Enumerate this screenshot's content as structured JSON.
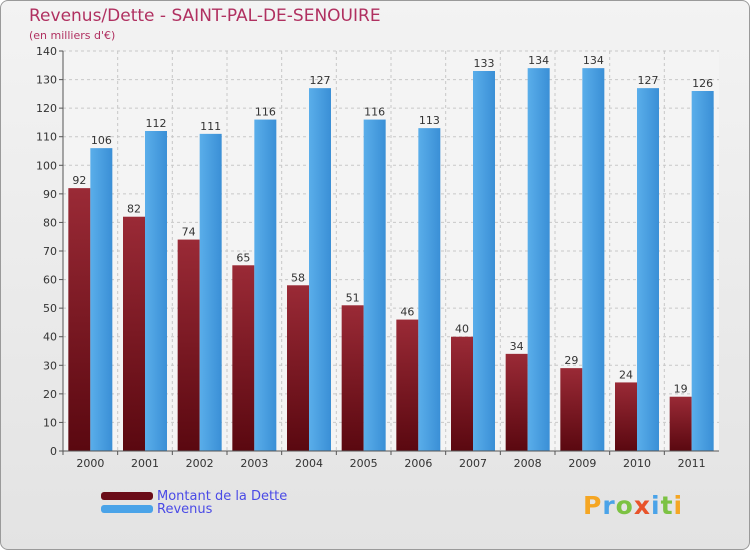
{
  "chart_data": {
    "type": "bar",
    "title": "Revenus/Dette - SAINT-PAL-DE-SENOUIRE",
    "subtitle": "(en milliers d'€)",
    "categories": [
      "2000",
      "2001",
      "2002",
      "2003",
      "2004",
      "2005",
      "2006",
      "2007",
      "2008",
      "2009",
      "2010",
      "2011"
    ],
    "series": [
      {
        "name": "Montant de la Dette",
        "values": [
          92,
          82,
          74,
          65,
          58,
          51,
          46,
          40,
          34,
          29,
          24,
          19
        ],
        "color": "#8c1c2c"
      },
      {
        "name": "Revenus",
        "values": [
          106,
          112,
          111,
          116,
          127,
          116,
          113,
          133,
          134,
          134,
          127,
          126
        ],
        "color": "#4aa3e8"
      }
    ],
    "ylim": [
      0,
      140
    ],
    "yticks": [
      0,
      10,
      20,
      30,
      40,
      50,
      60,
      70,
      80,
      90,
      100,
      110,
      120,
      130,
      140
    ],
    "grid": true,
    "legend_placement": "bottom-left"
  },
  "logo": {
    "text": "Proxiti",
    "colors": [
      "#f5a623",
      "#4aa3e8",
      "#7cc243",
      "#e8532a",
      "#4aa3e8",
      "#7cc243",
      "#f5a623"
    ]
  }
}
